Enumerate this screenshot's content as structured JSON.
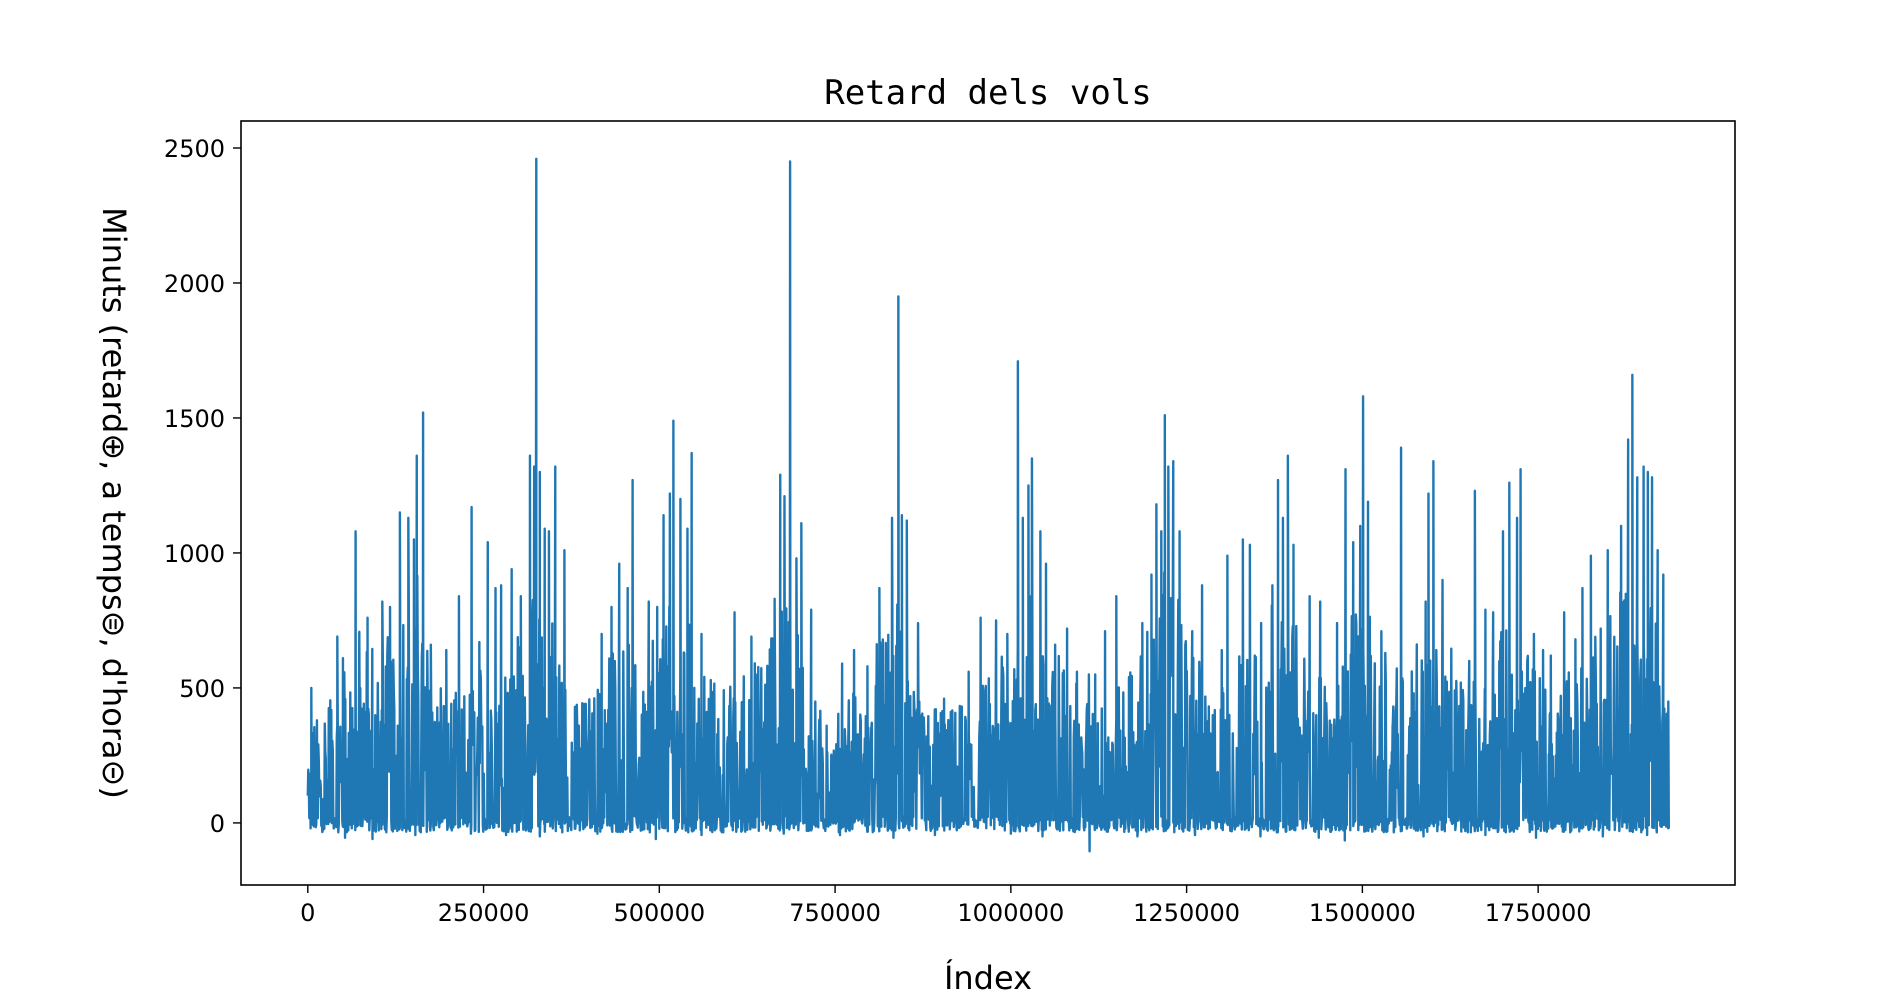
{
  "chart_data": {
    "type": "line",
    "title": "Retard dels vols",
    "xlabel": "Índex",
    "ylabel": "Minuts (retard⊕, a temps⊜, d'hora⊝)",
    "xlim": [
      -95000,
      2030000
    ],
    "ylim": [
      -230,
      2600
    ],
    "xticks": [
      0,
      250000,
      500000,
      750000,
      1000000,
      1250000,
      1500000,
      1750000
    ],
    "xtick_labels": [
      "0",
      "250000",
      "500000",
      "750000",
      "1000000",
      "1250000",
      "1500000",
      "1750000"
    ],
    "yticks": [
      0,
      500,
      1000,
      1500,
      2000,
      2500
    ],
    "ytick_labels": [
      "0",
      "500",
      "1000",
      "1500",
      "2000",
      "2500"
    ],
    "grid": false,
    "legend": "none",
    "series": [
      {
        "color": "#1f77b4",
        "x_range": [
          0,
          1936000
        ],
        "baseline_max": [
          [
            0,
            300
          ],
          [
            40000,
            550
          ],
          [
            70000,
            700
          ],
          [
            100000,
            650
          ],
          [
            130000,
            800
          ],
          [
            160000,
            900
          ],
          [
            190000,
            500
          ],
          [
            220000,
            450
          ],
          [
            250000,
            600
          ],
          [
            280000,
            650
          ],
          [
            320000,
            800
          ],
          [
            350000,
            750
          ],
          [
            380000,
            420
          ],
          [
            410000,
            500
          ],
          [
            440000,
            650
          ],
          [
            470000,
            620
          ],
          [
            500000,
            700
          ],
          [
            530000,
            900
          ],
          [
            560000,
            520
          ],
          [
            590000,
            500
          ],
          [
            620000,
            550
          ],
          [
            650000,
            600
          ],
          [
            680000,
            900
          ],
          [
            710000,
            500
          ],
          [
            740000,
            400
          ],
          [
            770000,
            450
          ],
          [
            800000,
            550
          ],
          [
            830000,
            850
          ],
          [
            860000,
            600
          ],
          [
            890000,
            420
          ],
          [
            920000,
            400
          ],
          [
            950000,
            480
          ],
          [
            980000,
            550
          ],
          [
            1010000,
            900
          ],
          [
            1040000,
            800
          ],
          [
            1070000,
            600
          ],
          [
            1100000,
            460
          ],
          [
            1130000,
            500
          ],
          [
            1160000,
            500
          ],
          [
            1190000,
            650
          ],
          [
            1220000,
            900
          ],
          [
            1250000,
            750
          ],
          [
            1280000,
            450
          ],
          [
            1310000,
            500
          ],
          [
            1340000,
            700
          ],
          [
            1370000,
            800
          ],
          [
            1400000,
            750
          ],
          [
            1430000,
            550
          ],
          [
            1460000,
            500
          ],
          [
            1490000,
            800
          ],
          [
            1520000,
            700
          ],
          [
            1550000,
            600
          ],
          [
            1580000,
            650
          ],
          [
            1610000,
            700
          ],
          [
            1640000,
            550
          ],
          [
            1670000,
            500
          ],
          [
            1700000,
            700
          ],
          [
            1730000,
            650
          ],
          [
            1760000,
            550
          ],
          [
            1790000,
            600
          ],
          [
            1820000,
            650
          ],
          [
            1850000,
            750
          ],
          [
            1880000,
            900
          ],
          [
            1910000,
            900
          ],
          [
            1936000,
            450
          ]
        ],
        "peaks": [
          [
            5000,
            500
          ],
          [
            13000,
            380
          ],
          [
            42000,
            690
          ],
          [
            50000,
            610
          ],
          [
            68000,
            1080
          ],
          [
            85000,
            760
          ],
          [
            106000,
            820
          ],
          [
            117000,
            800
          ],
          [
            131000,
            1150
          ],
          [
            143000,
            1130
          ],
          [
            151000,
            1050
          ],
          [
            155000,
            1360
          ],
          [
            164000,
            1520
          ],
          [
            175000,
            660
          ],
          [
            197000,
            640
          ],
          [
            215000,
            840
          ],
          [
            233000,
            1170
          ],
          [
            244000,
            670
          ],
          [
            256000,
            1040
          ],
          [
            267000,
            870
          ],
          [
            275000,
            880
          ],
          [
            290000,
            940
          ],
          [
            303000,
            840
          ],
          [
            316000,
            1360
          ],
          [
            322000,
            1320
          ],
          [
            325000,
            2460
          ],
          [
            330000,
            1300
          ],
          [
            337000,
            1090
          ],
          [
            343000,
            1080
          ],
          [
            352000,
            1320
          ],
          [
            365000,
            1010
          ],
          [
            380000,
            430
          ],
          [
            393000,
            440
          ],
          [
            418000,
            700
          ],
          [
            432000,
            800
          ],
          [
            443000,
            960
          ],
          [
            455000,
            870
          ],
          [
            462000,
            1270
          ],
          [
            485000,
            820
          ],
          [
            497000,
            800
          ],
          [
            506000,
            1140
          ],
          [
            515000,
            1220
          ],
          [
            520000,
            1490
          ],
          [
            530000,
            1200
          ],
          [
            540000,
            1090
          ],
          [
            546000,
            1370
          ],
          [
            560000,
            700
          ],
          [
            607000,
            780
          ],
          [
            631000,
            690
          ],
          [
            656000,
            580
          ],
          [
            664000,
            830
          ],
          [
            672000,
            1290
          ],
          [
            678000,
            1210
          ],
          [
            686000,
            2450
          ],
          [
            695000,
            980
          ],
          [
            702000,
            1110
          ],
          [
            716000,
            790
          ],
          [
            738000,
            360
          ],
          [
            760000,
            590
          ],
          [
            777000,
            640
          ],
          [
            796000,
            580
          ],
          [
            813000,
            870
          ],
          [
            822000,
            560
          ],
          [
            831000,
            1130
          ],
          [
            840000,
            1950
          ],
          [
            845000,
            1140
          ],
          [
            852000,
            1120
          ],
          [
            868000,
            740
          ],
          [
            905000,
            460
          ],
          [
            940000,
            560
          ],
          [
            957000,
            760
          ],
          [
            979000,
            750
          ],
          [
            995000,
            700
          ],
          [
            1010000,
            1710
          ],
          [
            1017000,
            1130
          ],
          [
            1025000,
            1250
          ],
          [
            1030000,
            1350
          ],
          [
            1042000,
            1080
          ],
          [
            1050000,
            960
          ],
          [
            1063000,
            660
          ],
          [
            1080000,
            720
          ],
          [
            1094000,
            560
          ],
          [
            1111000,
            550
          ],
          [
            1120000,
            550
          ],
          [
            1134000,
            710
          ],
          [
            1150000,
            840
          ],
          [
            1168000,
            540
          ],
          [
            1187000,
            740
          ],
          [
            1200000,
            920
          ],
          [
            1207000,
            1180
          ],
          [
            1214000,
            1080
          ],
          [
            1219000,
            1510
          ],
          [
            1224000,
            1320
          ],
          [
            1231000,
            1340
          ],
          [
            1240000,
            1080
          ],
          [
            1258000,
            710
          ],
          [
            1272000,
            880
          ],
          [
            1300000,
            640
          ],
          [
            1308000,
            990
          ],
          [
            1325000,
            570
          ],
          [
            1330000,
            1050
          ],
          [
            1340000,
            1030
          ],
          [
            1356000,
            740
          ],
          [
            1372000,
            880
          ],
          [
            1380000,
            1270
          ],
          [
            1387000,
            1130
          ],
          [
            1394000,
            1360
          ],
          [
            1402000,
            1030
          ],
          [
            1425000,
            840
          ],
          [
            1440000,
            820
          ],
          [
            1464000,
            740
          ],
          [
            1476000,
            1310
          ],
          [
            1487000,
            1040
          ],
          [
            1497000,
            1100
          ],
          [
            1501000,
            1580
          ],
          [
            1508000,
            1190
          ],
          [
            1527000,
            710
          ],
          [
            1543000,
            360
          ],
          [
            1555000,
            1390
          ],
          [
            1573000,
            480
          ],
          [
            1590000,
            820
          ],
          [
            1594000,
            1220
          ],
          [
            1601000,
            1340
          ],
          [
            1614000,
            900
          ],
          [
            1640000,
            520
          ],
          [
            1652000,
            600
          ],
          [
            1660000,
            1230
          ],
          [
            1675000,
            790
          ],
          [
            1686000,
            780
          ],
          [
            1700000,
            1080
          ],
          [
            1709000,
            1260
          ],
          [
            1720000,
            1130
          ],
          [
            1725000,
            1310
          ],
          [
            1744000,
            700
          ],
          [
            1757000,
            640
          ],
          [
            1768000,
            620
          ],
          [
            1787000,
            780
          ],
          [
            1803000,
            680
          ],
          [
            1813000,
            870
          ],
          [
            1825000,
            990
          ],
          [
            1839000,
            720
          ],
          [
            1849000,
            1010
          ],
          [
            1868000,
            1100
          ],
          [
            1878000,
            1420
          ],
          [
            1884000,
            1660
          ],
          [
            1891000,
            1280
          ],
          [
            1900000,
            1320
          ],
          [
            1906000,
            1300
          ],
          [
            1912000,
            1280
          ],
          [
            1920000,
            1010
          ],
          [
            1928000,
            920
          ]
        ],
        "dips": [
          [
            4000,
            -20
          ],
          [
            53000,
            -55
          ],
          [
            92000,
            -60
          ],
          [
            153000,
            -45
          ],
          [
            232000,
            -40
          ],
          [
            282000,
            -45
          ],
          [
            330000,
            -50
          ],
          [
            412000,
            -40
          ],
          [
            495000,
            -60
          ],
          [
            560000,
            -45
          ],
          [
            677000,
            -40
          ],
          [
            757000,
            -45
          ],
          [
            833000,
            -55
          ],
          [
            892000,
            -45
          ],
          [
            1000000,
            -40
          ],
          [
            1045000,
            -50
          ],
          [
            1112000,
            -105
          ],
          [
            1180000,
            -50
          ],
          [
            1262000,
            -45
          ],
          [
            1355000,
            -50
          ],
          [
            1438000,
            -55
          ],
          [
            1475000,
            -65
          ],
          [
            1587000,
            -50
          ],
          [
            1675000,
            -45
          ],
          [
            1747000,
            -55
          ],
          [
            1842000,
            -50
          ],
          [
            1905000,
            -45
          ],
          [
            1935000,
            -20
          ]
        ]
      }
    ]
  }
}
